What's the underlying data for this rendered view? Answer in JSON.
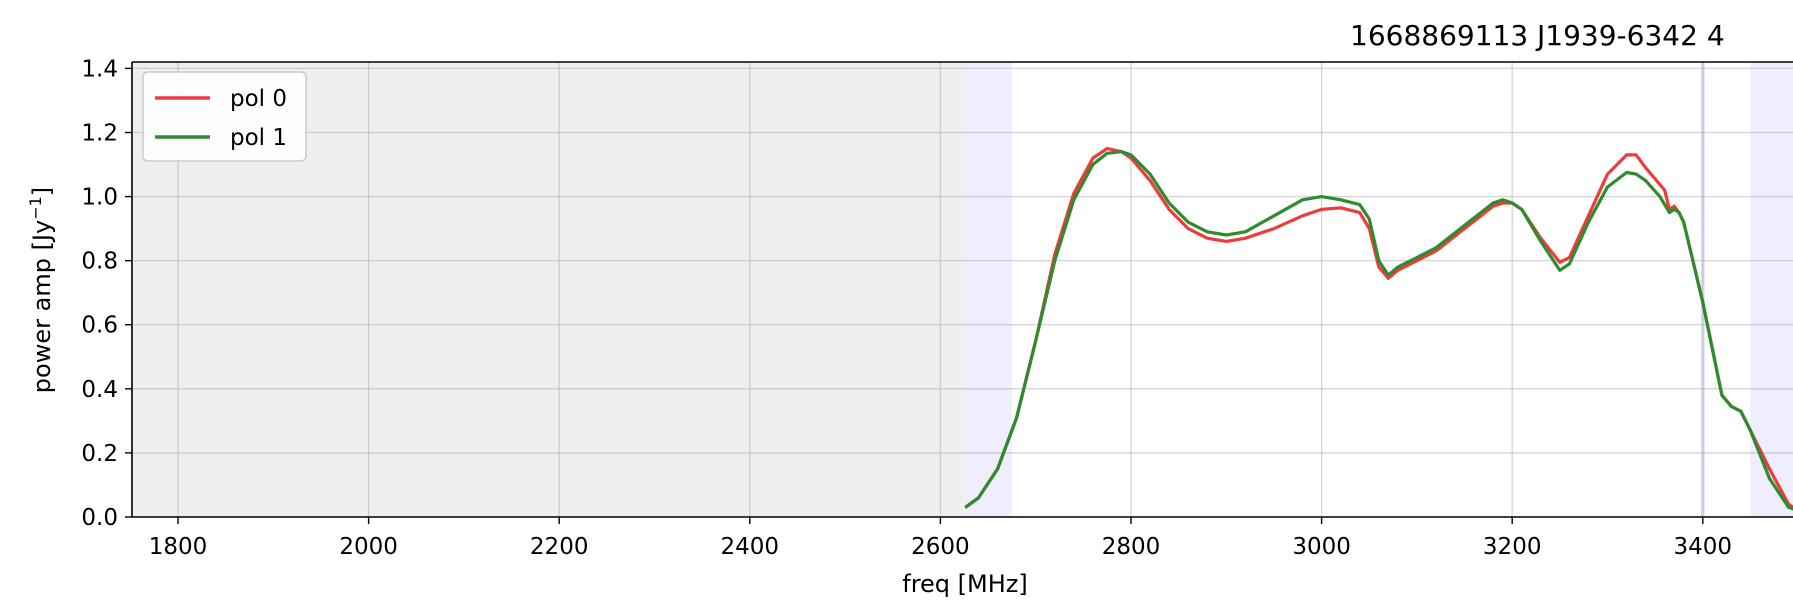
{
  "chart_data": {
    "type": "line",
    "title": "1668869113    J1939-6342   4",
    "xlabel": "freq [MHz]",
    "ylabel": "power amp [Jy",
    "ylabel_sup": "−1",
    "ylabel_end": "]",
    "xlim": [
      1750,
      3600
    ],
    "ylim": [
      0,
      1.42
    ],
    "xticks": [
      1800,
      2000,
      2200,
      2400,
      2600,
      2800,
      3000,
      3200,
      3400
    ],
    "yticks": [
      0.0,
      0.2,
      0.4,
      0.6,
      0.8,
      1.0,
      1.2,
      1.4
    ],
    "ytick_labels": [
      "0.0",
      "0.2",
      "0.4",
      "0.6",
      "0.8",
      "1.0",
      "1.2",
      "1.4"
    ],
    "grid": true,
    "legend_position": "top-left",
    "shaded_regions": [
      {
        "x0": 1750,
        "x1": 2625,
        "color": "#efefef"
      },
      {
        "x0": 2625,
        "x1": 2675,
        "color": "#eeeeff"
      },
      {
        "x0": 3398,
        "x1": 3402,
        "color": "#dcdcf2"
      },
      {
        "x0": 3450,
        "x1": 3600,
        "color": "#eeeeff"
      }
    ],
    "series": [
      {
        "name": "pol 0",
        "color": "#ee3b3b",
        "x": [
          2626,
          2640,
          2660,
          2680,
          2700,
          2720,
          2740,
          2760,
          2775,
          2790,
          2800,
          2820,
          2840,
          2860,
          2880,
          2900,
          2920,
          2950,
          2980,
          3000,
          3020,
          3040,
          3050,
          3060,
          3070,
          3080,
          3100,
          3120,
          3150,
          3180,
          3190,
          3200,
          3210,
          3230,
          3250,
          3260,
          3280,
          3300,
          3320,
          3330,
          3340,
          3360,
          3365,
          3370,
          3375,
          3380,
          3400,
          3420,
          3430,
          3440,
          3450,
          3470,
          3490,
          3500
        ],
        "y": [
          0.03,
          0.06,
          0.15,
          0.31,
          0.55,
          0.82,
          1.01,
          1.12,
          1.15,
          1.14,
          1.12,
          1.05,
          0.96,
          0.9,
          0.87,
          0.86,
          0.87,
          0.9,
          0.94,
          0.96,
          0.965,
          0.95,
          0.9,
          0.78,
          0.745,
          0.77,
          0.8,
          0.83,
          0.9,
          0.97,
          0.98,
          0.98,
          0.96,
          0.87,
          0.795,
          0.81,
          0.94,
          1.07,
          1.13,
          1.13,
          1.09,
          1.02,
          0.96,
          0.97,
          0.95,
          0.92,
          0.67,
          0.38,
          0.345,
          0.33,
          0.27,
          0.15,
          0.04,
          0.02
        ]
      },
      {
        "name": "pol 1",
        "color": "#2e8b2e",
        "x": [
          2626,
          2640,
          2660,
          2680,
          2700,
          2720,
          2740,
          2760,
          2775,
          2790,
          2800,
          2820,
          2840,
          2860,
          2880,
          2900,
          2920,
          2950,
          2980,
          3000,
          3020,
          3040,
          3050,
          3060,
          3070,
          3080,
          3100,
          3120,
          3150,
          3180,
          3190,
          3200,
          3210,
          3230,
          3250,
          3260,
          3280,
          3300,
          3320,
          3330,
          3340,
          3355,
          3365,
          3370,
          3375,
          3380,
          3400,
          3420,
          3430,
          3440,
          3450,
          3470,
          3490,
          3500
        ],
        "y": [
          0.03,
          0.06,
          0.15,
          0.31,
          0.55,
          0.8,
          0.99,
          1.1,
          1.135,
          1.14,
          1.13,
          1.07,
          0.98,
          0.92,
          0.89,
          0.88,
          0.89,
          0.94,
          0.99,
          1.0,
          0.99,
          0.975,
          0.93,
          0.8,
          0.755,
          0.78,
          0.81,
          0.84,
          0.91,
          0.98,
          0.99,
          0.98,
          0.96,
          0.86,
          0.77,
          0.79,
          0.92,
          1.03,
          1.075,
          1.07,
          1.05,
          1.0,
          0.95,
          0.96,
          0.95,
          0.92,
          0.67,
          0.38,
          0.345,
          0.33,
          0.27,
          0.12,
          0.03,
          0.02
        ]
      }
    ]
  }
}
